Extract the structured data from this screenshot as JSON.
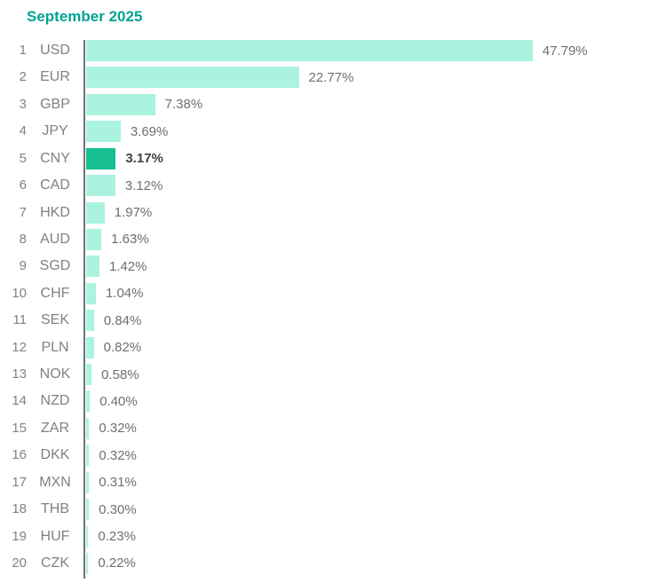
{
  "title": "September 2025",
  "colors": {
    "title": "#00A393",
    "bar": "#AAF3E0",
    "bar_highlight": "#16BE92",
    "axis": "#6B7574",
    "rank": "#7F8184",
    "label": "#7F8184",
    "value": "#6D6E71",
    "value_highlight": "#414042",
    "background": "#FFFFFF"
  },
  "chart_data": {
    "type": "bar",
    "orientation": "horizontal",
    "title": "September 2025",
    "ranks": [
      1,
      2,
      3,
      4,
      5,
      6,
      7,
      8,
      9,
      10,
      11,
      12,
      13,
      14,
      15,
      16,
      17,
      18,
      19,
      20
    ],
    "categories": [
      "USD",
      "EUR",
      "GBP",
      "JPY",
      "CNY",
      "CAD",
      "HKD",
      "AUD",
      "SGD",
      "CHF",
      "SEK",
      "PLN",
      "NOK",
      "NZD",
      "ZAR",
      "DKK",
      "MXN",
      "THB",
      "HUF",
      "CZK"
    ],
    "values": [
      47.79,
      22.77,
      7.38,
      3.69,
      3.17,
      3.12,
      1.97,
      1.63,
      1.42,
      1.04,
      0.84,
      0.82,
      0.58,
      0.4,
      0.32,
      0.32,
      0.31,
      0.3,
      0.23,
      0.22
    ],
    "value_labels": [
      "47.79%",
      "22.77%",
      "7.38%",
      "3.69%",
      "3.17%",
      "3.12%",
      "1.97%",
      "1.63%",
      "1.42%",
      "1.04%",
      "0.84%",
      "0.82%",
      "0.58%",
      "0.40%",
      "0.32%",
      "0.32%",
      "0.31%",
      "0.30%",
      "0.23%",
      "0.22%"
    ],
    "highlight_category": "CNY",
    "highlight_index": 4,
    "xlim": [
      0,
      50
    ],
    "grid": false,
    "legend": false
  }
}
